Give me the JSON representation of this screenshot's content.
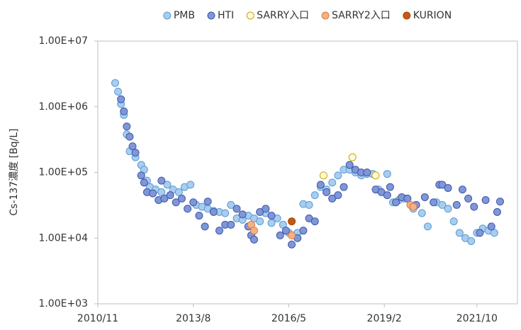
{
  "chart_data": {
    "type": "scatter",
    "xlim": [
      "2010/11",
      "2022/12"
    ],
    "xticks": [
      "2010/11",
      "2013/8",
      "2016/5",
      "2019/2",
      "2021/10"
    ],
    "ylim": [
      1000,
      10000000
    ],
    "yticks": [
      {
        "value": 1000,
        "label": "1.00E+03"
      },
      {
        "value": 10000,
        "label": "1.00E+04"
      },
      {
        "value": 100000,
        "label": "1.00E+05"
      },
      {
        "value": 1000000,
        "label": "1.00E+06"
      },
      {
        "value": 10000000,
        "label": "1.00E+07"
      }
    ],
    "ylabel": "Cs-137濃度 [Bq/L]",
    "log_y": true,
    "grid": false,
    "legend": "top",
    "series": [
      {
        "name": "PMB",
        "color": "#a9cdee",
        "edge": "#5b9bd5",
        "x": [
          "2011/5",
          "2011/6",
          "2011/7",
          "2011/8",
          "2011/9",
          "2011/10",
          "2011/12",
          "2012/2",
          "2012/3",
          "2012/4",
          "2012/5",
          "2012/7",
          "2012/9",
          "2012/11",
          "2013/1",
          "2013/3",
          "2013/5",
          "2013/7",
          "2013/9",
          "2013/11",
          "2014/1",
          "2014/3",
          "2014/5",
          "2014/7",
          "2014/9",
          "2014/11",
          "2015/1",
          "2015/3",
          "2015/5",
          "2015/7",
          "2015/9",
          "2015/11",
          "2016/1",
          "2016/3",
          "2016/5",
          "2016/8",
          "2016/10",
          "2016/12",
          "2017/2",
          "2017/4",
          "2017/6",
          "2017/8",
          "2017/10",
          "2017/12",
          "2018/2",
          "2018/4",
          "2018/6",
          "2018/8",
          "2018/10",
          "2018/12",
          "2019/3",
          "2019/5",
          "2019/7",
          "2019/9",
          "2019/12",
          "2020/3",
          "2020/5",
          "2020/8",
          "2020/10",
          "2020/12",
          "2021/2",
          "2021/4",
          "2021/6",
          "2021/8",
          "2021/10",
          "2021/12",
          "2022/2",
          "2022/4"
        ],
        "values": [
          2300000,
          1700000,
          1100000,
          750000,
          380000,
          210000,
          170000,
          130000,
          110000,
          75000,
          60000,
          55000,
          50000,
          65000,
          55000,
          50000,
          60000,
          65000,
          32000,
          30000,
          28000,
          26000,
          25000,
          24000,
          32000,
          20000,
          19000,
          22000,
          20000,
          18000,
          24000,
          17000,
          20000,
          16000,
          12000,
          12000,
          33000,
          32000,
          45000,
          60000,
          55000,
          70000,
          90000,
          110000,
          110000,
          100000,
          90000,
          95000,
          95000,
          55000,
          95000,
          35000,
          38000,
          40000,
          28000,
          24000,
          15000,
          35000,
          32000,
          28000,
          18000,
          12000,
          10000,
          9000,
          12000,
          14000,
          13000,
          12000
        ]
      },
      {
        "name": "HTI",
        "color": "#7f96d8",
        "edge": "#3f58a8",
        "x": [
          "2011/7",
          "2011/8",
          "2011/9",
          "2011/10",
          "2011/11",
          "2011/12",
          "2012/2",
          "2012/3",
          "2012/4",
          "2012/6",
          "2012/8",
          "2012/9",
          "2012/10",
          "2012/12",
          "2013/2",
          "2013/4",
          "2013/6",
          "2013/8",
          "2013/10",
          "2013/12",
          "2014/1",
          "2014/3",
          "2014/5",
          "2014/7",
          "2014/9",
          "2014/11",
          "2015/1",
          "2015/3",
          "2015/4",
          "2015/5",
          "2015/7",
          "2015/9",
          "2015/11",
          "2016/2",
          "2016/4",
          "2016/6",
          "2016/8",
          "2016/10",
          "2016/12",
          "2017/2",
          "2017/4",
          "2017/6",
          "2017/8",
          "2017/10",
          "2017/12",
          "2018/2",
          "2018/4",
          "2018/6",
          "2018/8",
          "2018/11",
          "2019/1",
          "2019/3",
          "2019/4",
          "2019/6",
          "2019/8",
          "2019/10",
          "2020/1",
          "2020/4",
          "2020/7",
          "2020/9",
          "2020/10",
          "2020/12",
          "2021/3",
          "2021/5",
          "2021/7",
          "2021/9",
          "2021/11",
          "2022/1",
          "2022/3",
          "2022/5",
          "2022/6"
        ],
        "values": [
          1300000,
          850000,
          500000,
          350000,
          250000,
          200000,
          90000,
          70000,
          50000,
          48000,
          38000,
          75000,
          40000,
          45000,
          35000,
          40000,
          28000,
          35000,
          22000,
          15000,
          36000,
          25000,
          13000,
          16000,
          16000,
          28000,
          23000,
          15000,
          11000,
          9500,
          25000,
          28000,
          22000,
          11000,
          13000,
          8000,
          10000,
          13000,
          20000,
          18000,
          65000,
          50000,
          40000,
          45000,
          60000,
          130000,
          110000,
          100000,
          100000,
          55000,
          50000,
          45000,
          60000,
          35000,
          42000,
          40000,
          32000,
          42000,
          35000,
          65000,
          65000,
          58000,
          32000,
          55000,
          40000,
          30000,
          12000,
          38000,
          15000,
          25000,
          36000
        ]
      },
      {
        "name": "SARRY入口",
        "color": "#fffbe0",
        "edge": "#c9a400",
        "x": [
          "2017/5",
          "2018/3",
          "2018/11"
        ],
        "values": [
          90000,
          170000,
          90000
        ]
      },
      {
        "name": "SARRY2入口",
        "color": "#f4b183",
        "edge": "#e07b45",
        "x": [
          "2015/4",
          "2015/5",
          "2016/6",
          "2019/11",
          "2019/12"
        ],
        "values": [
          16000,
          13000,
          11000,
          32000,
          30000
        ]
      },
      {
        "name": "KURION",
        "color": "#c55a11",
        "edge": "#a0460a",
        "x": [
          "2016/6"
        ],
        "values": [
          18000
        ]
      }
    ]
  }
}
